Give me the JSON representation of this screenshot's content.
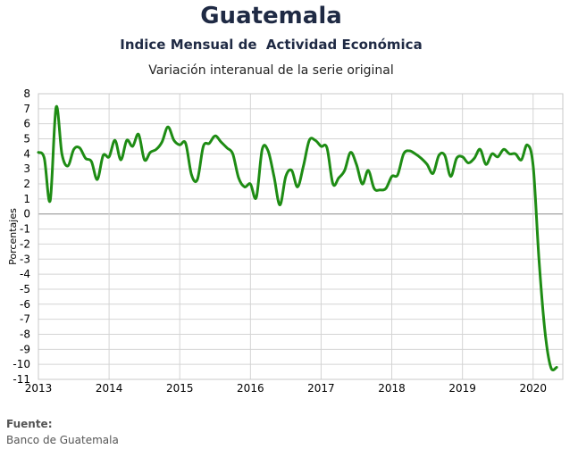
{
  "chart_data": {
    "type": "line",
    "title": "Guatemala",
    "subtitle": "Indice Mensual de  Actividad Económica",
    "subtitle2": "Variación interanual de la serie original",
    "xlabel": "",
    "ylabel": "Porcentajes",
    "xlim": [
      2013,
      2020.42
    ],
    "ylim": [
      -11,
      8
    ],
    "x_ticks": [
      "2013",
      "2014",
      "2015",
      "2016",
      "2017",
      "2018",
      "2019",
      "2020"
    ],
    "y_ticks": [
      8,
      7,
      6,
      5,
      4,
      3,
      2,
      1,
      0,
      -1,
      -2,
      -3,
      -4,
      -5,
      -6,
      -7,
      -8,
      -9,
      -10,
      -11
    ],
    "grid": true,
    "line_color": "#1e8c14",
    "x": [
      2013.0,
      2013.083,
      2013.167,
      2013.25,
      2013.333,
      2013.417,
      2013.5,
      2013.583,
      2013.667,
      2013.75,
      2013.833,
      2013.917,
      2014.0,
      2014.083,
      2014.167,
      2014.25,
      2014.333,
      2014.417,
      2014.5,
      2014.583,
      2014.667,
      2014.75,
      2014.833,
      2014.917,
      2015.0,
      2015.083,
      2015.167,
      2015.25,
      2015.333,
      2015.417,
      2015.5,
      2015.583,
      2015.667,
      2015.75,
      2015.833,
      2015.917,
      2016.0,
      2016.083,
      2016.167,
      2016.25,
      2016.333,
      2016.417,
      2016.5,
      2016.583,
      2016.667,
      2016.75,
      2016.833,
      2016.917,
      2017.0,
      2017.083,
      2017.167,
      2017.25,
      2017.333,
      2017.417,
      2017.5,
      2017.583,
      2017.667,
      2017.75,
      2017.833,
      2017.917,
      2018.0,
      2018.083,
      2018.167,
      2018.25,
      2018.333,
      2018.417,
      2018.5,
      2018.583,
      2018.667,
      2018.75,
      2018.833,
      2018.917,
      2019.0,
      2019.083,
      2019.167,
      2019.25,
      2019.333,
      2019.417,
      2019.5,
      2019.583,
      2019.667,
      2019.75,
      2019.833,
      2019.917,
      2020.0,
      2020.083,
      2020.167,
      2020.25,
      2020.333
    ],
    "values": [
      4.1,
      3.7,
      0.9,
      7.1,
      4.0,
      3.2,
      4.3,
      4.4,
      3.7,
      3.5,
      2.3,
      3.9,
      3.8,
      4.9,
      3.6,
      4.9,
      4.5,
      5.3,
      3.6,
      4.1,
      4.3,
      4.8,
      5.8,
      4.9,
      4.6,
      4.7,
      2.6,
      2.3,
      4.5,
      4.7,
      5.2,
      4.8,
      4.4,
      4.0,
      2.4,
      1.8,
      2.0,
      1.1,
      4.3,
      4.2,
      2.5,
      0.6,
      2.5,
      2.9,
      1.8,
      3.2,
      4.9,
      4.9,
      4.5,
      4.4,
      2.0,
      2.4,
      2.9,
      4.1,
      3.3,
      2.0,
      2.9,
      1.7,
      1.6,
      1.7,
      2.5,
      2.6,
      4.0,
      4.2,
      4.0,
      3.7,
      3.3,
      2.7,
      3.9,
      3.9,
      2.5,
      3.7,
      3.8,
      3.4,
      3.7,
      4.3,
      3.3,
      4.0,
      3.8,
      4.3,
      4.0,
      4.0,
      3.6,
      4.6,
      3.2,
      -3.0,
      -7.8,
      -10.2,
      -10.2
    ]
  },
  "source": {
    "label": "Fuente:",
    "value": "Banco de Guatemala"
  }
}
